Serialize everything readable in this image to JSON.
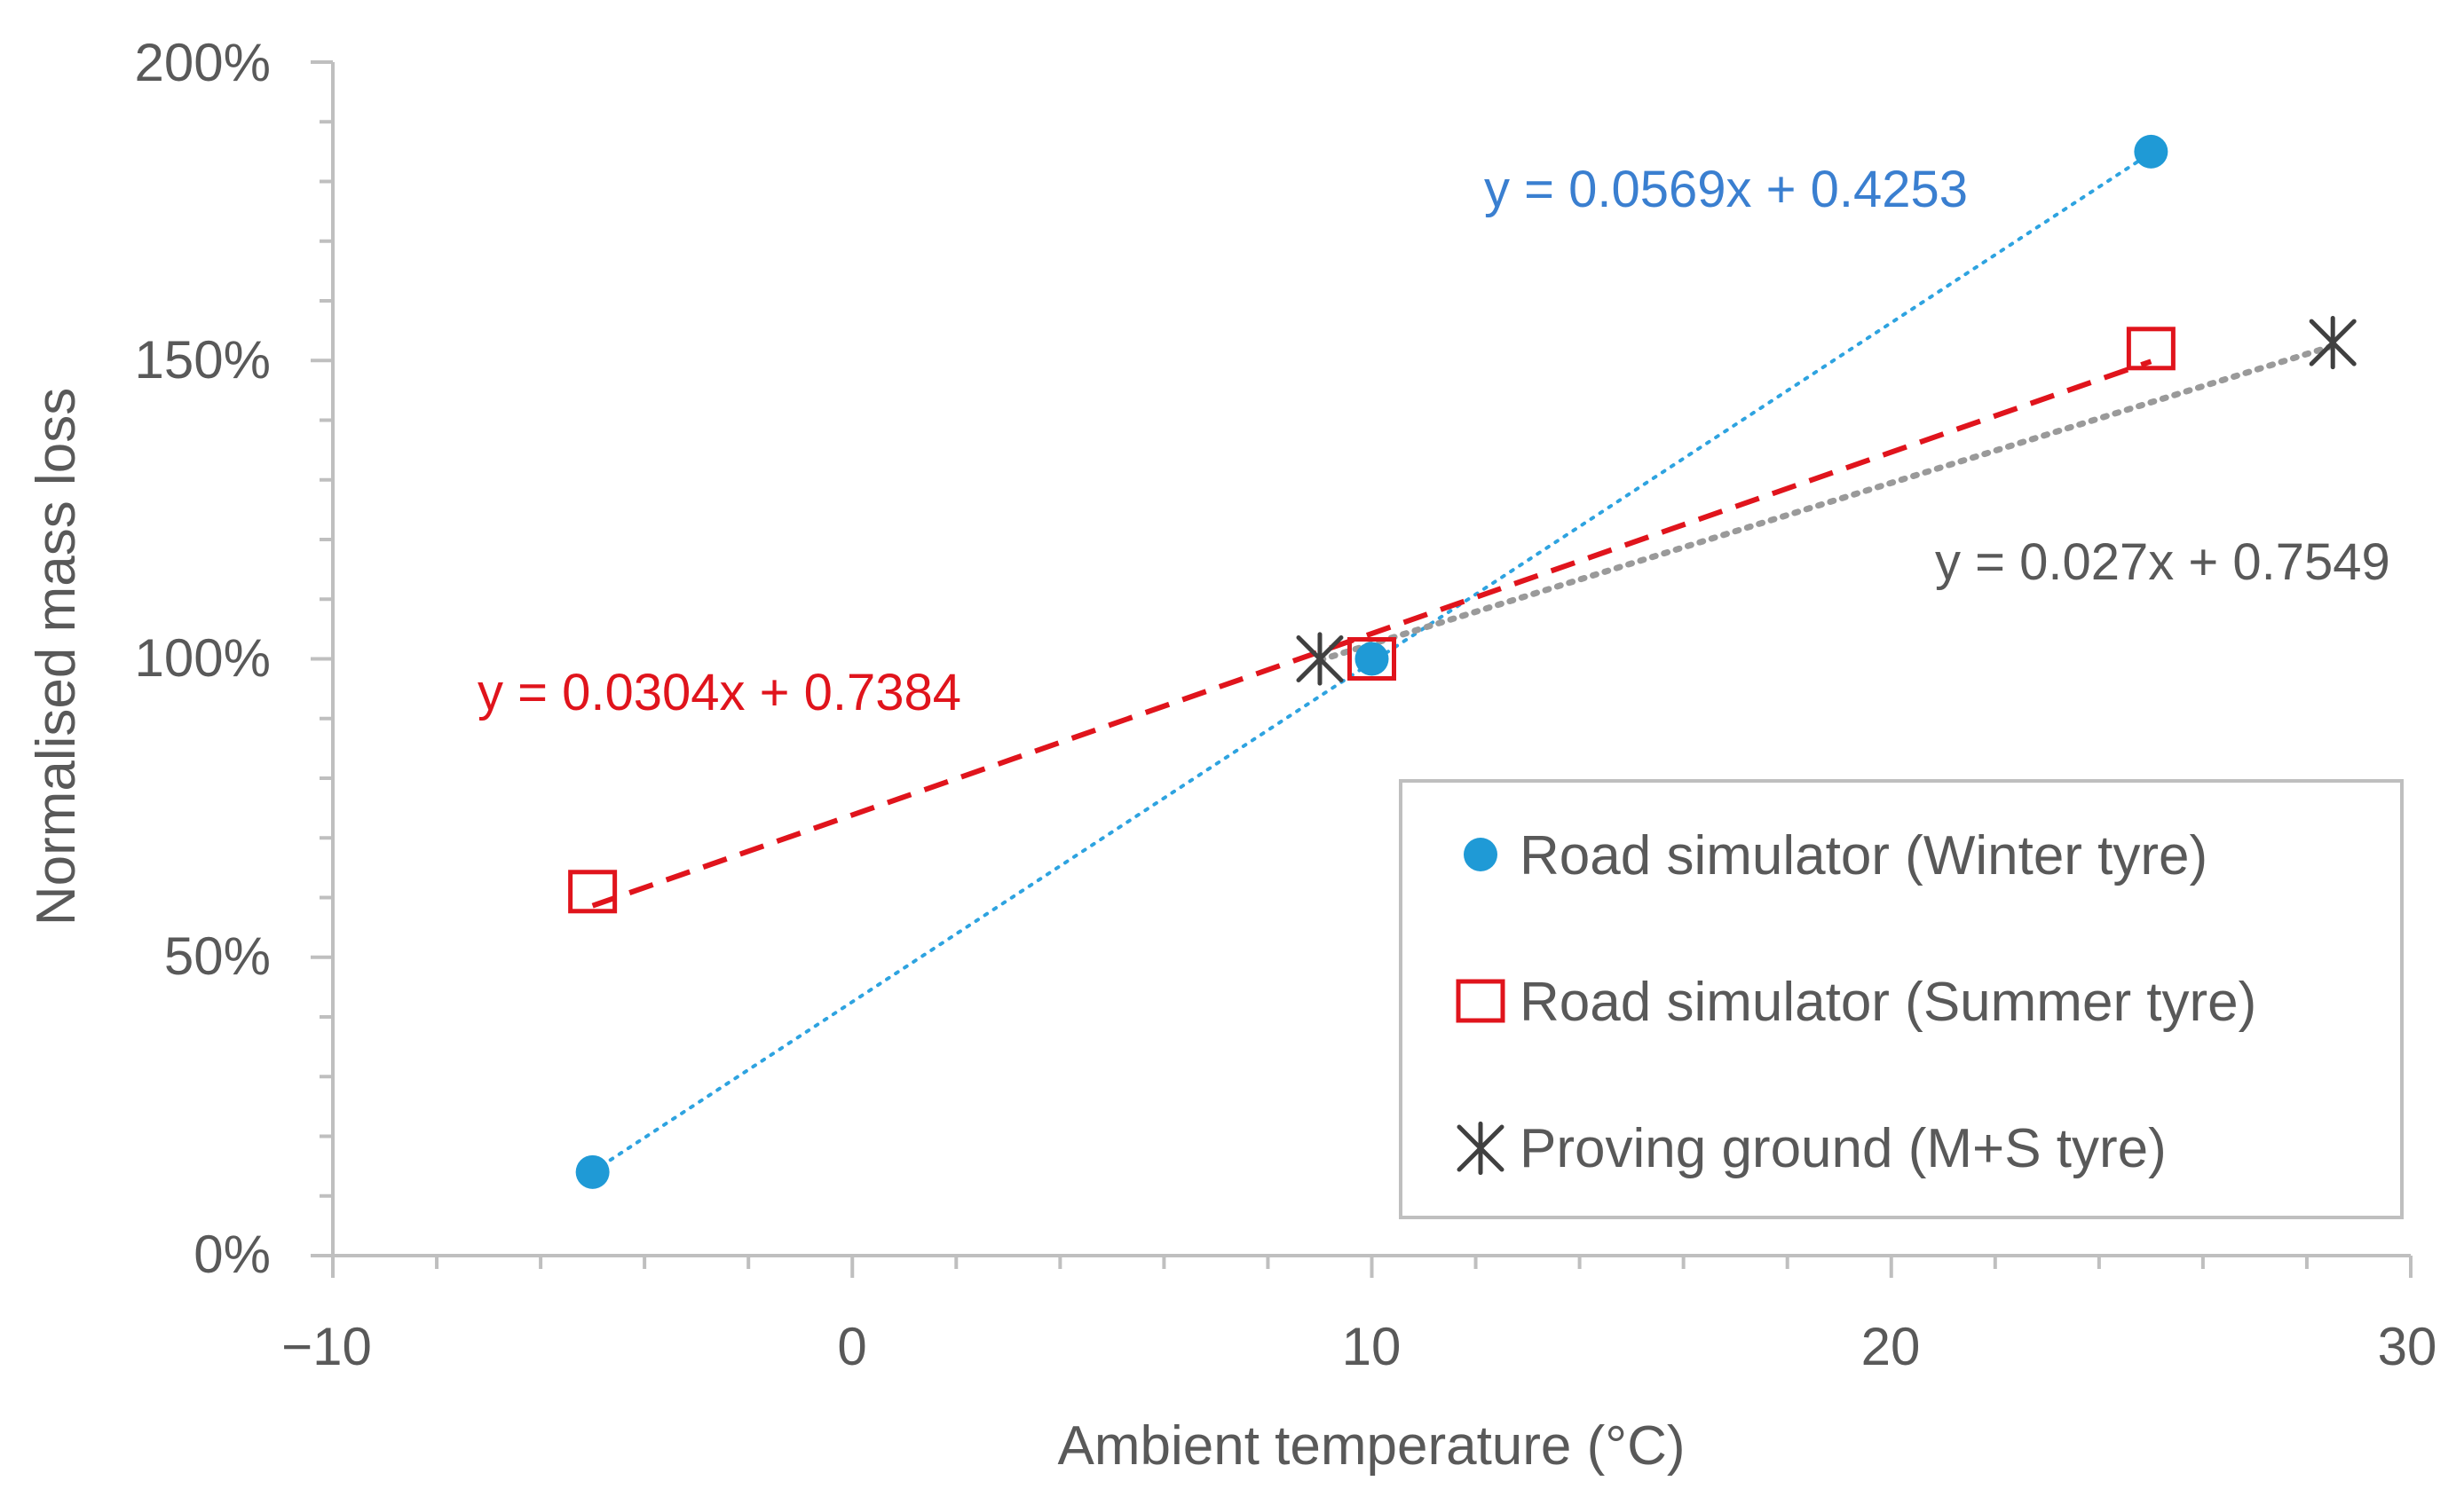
{
  "chart_data": {
    "type": "scatter",
    "title": "",
    "xlabel": "Ambient temperature (°C)",
    "ylabel": "Normalised mass loss",
    "xlim": [
      -10,
      30
    ],
    "ylim": [
      0,
      2
    ],
    "x_ticks": [
      -10,
      0,
      10,
      20,
      30
    ],
    "x_tick_labels": [
      "−10",
      "0",
      "10",
      "20",
      "30"
    ],
    "y_ticks": [
      0,
      0.5,
      1,
      1.5,
      2
    ],
    "y_tick_labels": [
      "0%",
      "50%",
      "100%",
      "150%",
      "200%"
    ],
    "grid": false,
    "legend_position": "bottom-right",
    "series": [
      {
        "name": "Road simulator (Winter tyre)",
        "marker": "circle",
        "color": "#1f9ad6",
        "trend_color": "#2ea3e0",
        "trend_style": "dotted",
        "x": [
          -5,
          10,
          25
        ],
        "y": [
          0.14,
          1.0,
          1.85
        ],
        "trendline": {
          "slope": 0.0569,
          "intercept": 0.4253,
          "x_range": [
            -5,
            25
          ]
        },
        "equation_label": "y = 0.0569x + 0.4253",
        "equation_color": "#3a7fd0"
      },
      {
        "name": "Road simulator (Summer tyre)",
        "marker": "square",
        "color": "#e0141c",
        "trend_color": "#e0141c",
        "trend_style": "dashed",
        "x": [
          -5,
          10,
          25
        ],
        "y": [
          0.61,
          1.0,
          1.52
        ],
        "trendline": {
          "slope": 0.0304,
          "intercept": 0.7384,
          "x_range": [
            -5,
            25
          ]
        },
        "equation_label": "y = 0.0304x + 0.7384",
        "equation_color": "#e0141c"
      },
      {
        "name": "Proving ground (M+S tyre)",
        "marker": "asterisk",
        "color": "#404040",
        "trend_color": "#9a9a9a",
        "trend_style": "dotted",
        "x": [
          9,
          28.5
        ],
        "y": [
          1.0,
          1.53
        ],
        "trendline": {
          "slope": 0.027,
          "intercept": 0.7549,
          "x_range": [
            9,
            28.5
          ]
        },
        "equation_label": "y = 0.027x + 0.7549",
        "equation_color": "#595959"
      }
    ]
  }
}
